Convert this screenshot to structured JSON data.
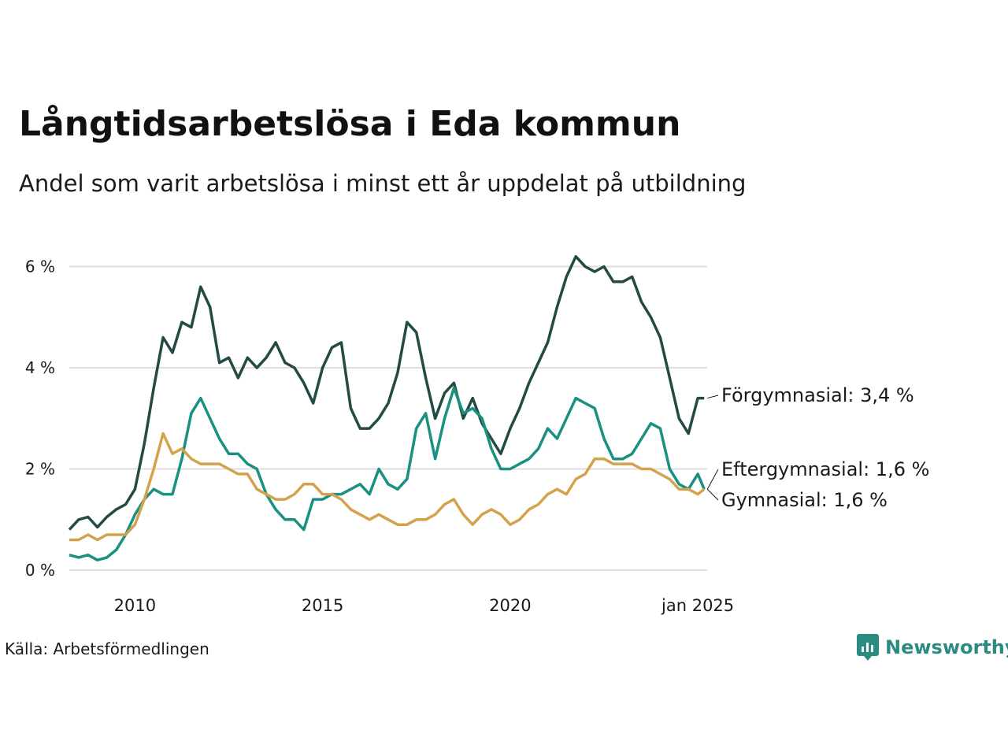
{
  "title": "Långtidsarbetslösa i Eda kommun",
  "subtitle": "Andel som varit arbetslösa i minst ett år uppdelat på utbildning",
  "source": "Källa: Arbetsförmedlingen",
  "brand": {
    "name": "Newsworthy",
    "icon": "newsworthy-logo-icon",
    "color": "#2a8c80"
  },
  "chart_data": {
    "type": "line",
    "title": "Långtidsarbetslösa i Eda kommun",
    "subtitle": "Andel som varit arbetslösa i minst ett år uppdelat på utbildning",
    "xlabel": "",
    "ylabel": "",
    "xlim": [
      2008.0,
      2025.0
    ],
    "ylim": [
      0,
      6.6
    ],
    "grid": true,
    "yticks": [
      {
        "value": 0,
        "label": "0 %"
      },
      {
        "value": 2,
        "label": "2 %"
      },
      {
        "value": 4,
        "label": "4 %"
      },
      {
        "value": 6,
        "label": "6 %"
      }
    ],
    "xticks": [
      {
        "value": 2009.75,
        "label": "2010"
      },
      {
        "value": 2014.75,
        "label": "2015"
      },
      {
        "value": 2019.75,
        "label": "2020"
      },
      {
        "value": 2024.75,
        "label": "jan 2025"
      }
    ],
    "series": [
      {
        "name": "Förgymnasial",
        "label": "Förgymnasial: 3,4 %",
        "color": "#234a44",
        "points": [
          [
            2008.0,
            0.8
          ],
          [
            2008.25,
            1.0
          ],
          [
            2008.5,
            1.05
          ],
          [
            2008.75,
            0.85
          ],
          [
            2009.0,
            1.05
          ],
          [
            2009.25,
            1.2
          ],
          [
            2009.5,
            1.3
          ],
          [
            2009.75,
            1.6
          ],
          [
            2010.0,
            2.5
          ],
          [
            2010.25,
            3.6
          ],
          [
            2010.5,
            4.6
          ],
          [
            2010.75,
            4.3
          ],
          [
            2011.0,
            4.9
          ],
          [
            2011.25,
            4.8
          ],
          [
            2011.5,
            5.6
          ],
          [
            2011.75,
            5.2
          ],
          [
            2012.0,
            4.1
          ],
          [
            2012.25,
            4.2
          ],
          [
            2012.5,
            3.8
          ],
          [
            2012.75,
            4.2
          ],
          [
            2013.0,
            4.0
          ],
          [
            2013.25,
            4.2
          ],
          [
            2013.5,
            4.5
          ],
          [
            2013.75,
            4.1
          ],
          [
            2014.0,
            4.0
          ],
          [
            2014.25,
            3.7
          ],
          [
            2014.5,
            3.3
          ],
          [
            2014.75,
            4.0
          ],
          [
            2015.0,
            4.4
          ],
          [
            2015.25,
            4.5
          ],
          [
            2015.5,
            3.2
          ],
          [
            2015.75,
            2.8
          ],
          [
            2016.0,
            2.8
          ],
          [
            2016.25,
            3.0
          ],
          [
            2016.5,
            3.3
          ],
          [
            2016.75,
            3.9
          ],
          [
            2017.0,
            4.9
          ],
          [
            2017.25,
            4.7
          ],
          [
            2017.5,
            3.8
          ],
          [
            2017.75,
            3.0
          ],
          [
            2018.0,
            3.5
          ],
          [
            2018.25,
            3.7
          ],
          [
            2018.5,
            3.0
          ],
          [
            2018.75,
            3.4
          ],
          [
            2019.0,
            2.9
          ],
          [
            2019.25,
            2.6
          ],
          [
            2019.5,
            2.3
          ],
          [
            2019.75,
            2.8
          ],
          [
            2020.0,
            3.2
          ],
          [
            2020.25,
            3.7
          ],
          [
            2020.5,
            4.1
          ],
          [
            2020.75,
            4.5
          ],
          [
            2021.0,
            5.2
          ],
          [
            2021.25,
            5.8
          ],
          [
            2021.5,
            6.2
          ],
          [
            2021.75,
            6.0
          ],
          [
            2022.0,
            5.9
          ],
          [
            2022.25,
            6.0
          ],
          [
            2022.5,
            5.7
          ],
          [
            2022.75,
            5.7
          ],
          [
            2023.0,
            5.8
          ],
          [
            2023.25,
            5.3
          ],
          [
            2023.5,
            5.0
          ],
          [
            2023.75,
            4.6
          ],
          [
            2024.0,
            3.8
          ],
          [
            2024.25,
            3.0
          ],
          [
            2024.5,
            2.7
          ],
          [
            2024.75,
            3.4
          ],
          [
            2024.92,
            3.4
          ]
        ]
      },
      {
        "name": "Eftergymnasial",
        "label": "Eftergymnasial: 1,6 %",
        "color": "#1a9081",
        "points": [
          [
            2008.0,
            0.3
          ],
          [
            2008.25,
            0.25
          ],
          [
            2008.5,
            0.3
          ],
          [
            2008.75,
            0.2
          ],
          [
            2009.0,
            0.25
          ],
          [
            2009.25,
            0.4
          ],
          [
            2009.5,
            0.7
          ],
          [
            2009.75,
            1.1
          ],
          [
            2010.0,
            1.4
          ],
          [
            2010.25,
            1.6
          ],
          [
            2010.5,
            1.5
          ],
          [
            2010.75,
            1.5
          ],
          [
            2011.0,
            2.2
          ],
          [
            2011.25,
            3.1
          ],
          [
            2011.5,
            3.4
          ],
          [
            2011.75,
            3.0
          ],
          [
            2012.0,
            2.6
          ],
          [
            2012.25,
            2.3
          ],
          [
            2012.5,
            2.3
          ],
          [
            2012.75,
            2.1
          ],
          [
            2013.0,
            2.0
          ],
          [
            2013.25,
            1.5
          ],
          [
            2013.5,
            1.2
          ],
          [
            2013.75,
            1.0
          ],
          [
            2014.0,
            1.0
          ],
          [
            2014.25,
            0.8
          ],
          [
            2014.5,
            1.4
          ],
          [
            2014.75,
            1.4
          ],
          [
            2015.0,
            1.5
          ],
          [
            2015.25,
            1.5
          ],
          [
            2015.5,
            1.6
          ],
          [
            2015.75,
            1.7
          ],
          [
            2016.0,
            1.5
          ],
          [
            2016.25,
            2.0
          ],
          [
            2016.5,
            1.7
          ],
          [
            2016.75,
            1.6
          ],
          [
            2017.0,
            1.8
          ],
          [
            2017.25,
            2.8
          ],
          [
            2017.5,
            3.1
          ],
          [
            2017.75,
            2.2
          ],
          [
            2018.0,
            3.0
          ],
          [
            2018.25,
            3.6
          ],
          [
            2018.5,
            3.1
          ],
          [
            2018.75,
            3.2
          ],
          [
            2019.0,
            3.0
          ],
          [
            2019.25,
            2.4
          ],
          [
            2019.5,
            2.0
          ],
          [
            2019.75,
            2.0
          ],
          [
            2020.0,
            2.1
          ],
          [
            2020.25,
            2.2
          ],
          [
            2020.5,
            2.4
          ],
          [
            2020.75,
            2.8
          ],
          [
            2021.0,
            2.6
          ],
          [
            2021.25,
            3.0
          ],
          [
            2021.5,
            3.4
          ],
          [
            2021.75,
            3.3
          ],
          [
            2022.0,
            3.2
          ],
          [
            2022.25,
            2.6
          ],
          [
            2022.5,
            2.2
          ],
          [
            2022.75,
            2.2
          ],
          [
            2023.0,
            2.3
          ],
          [
            2023.25,
            2.6
          ],
          [
            2023.5,
            2.9
          ],
          [
            2023.75,
            2.8
          ],
          [
            2024.0,
            2.0
          ],
          [
            2024.25,
            1.7
          ],
          [
            2024.5,
            1.6
          ],
          [
            2024.75,
            1.9
          ],
          [
            2024.92,
            1.6
          ]
        ]
      },
      {
        "name": "Gymnasial",
        "label": "Gymnasial: 1,6 %",
        "color": "#d4a24c",
        "points": [
          [
            2008.0,
            0.6
          ],
          [
            2008.25,
            0.6
          ],
          [
            2008.5,
            0.7
          ],
          [
            2008.75,
            0.6
          ],
          [
            2009.0,
            0.7
          ],
          [
            2009.25,
            0.7
          ],
          [
            2009.5,
            0.7
          ],
          [
            2009.75,
            0.9
          ],
          [
            2010.0,
            1.4
          ],
          [
            2010.25,
            2.0
          ],
          [
            2010.5,
            2.7
          ],
          [
            2010.75,
            2.3
          ],
          [
            2011.0,
            2.4
          ],
          [
            2011.25,
            2.2
          ],
          [
            2011.5,
            2.1
          ],
          [
            2011.75,
            2.1
          ],
          [
            2012.0,
            2.1
          ],
          [
            2012.25,
            2.0
          ],
          [
            2012.5,
            1.9
          ],
          [
            2012.75,
            1.9
          ],
          [
            2013.0,
            1.6
          ],
          [
            2013.25,
            1.5
          ],
          [
            2013.5,
            1.4
          ],
          [
            2013.75,
            1.4
          ],
          [
            2014.0,
            1.5
          ],
          [
            2014.25,
            1.7
          ],
          [
            2014.5,
            1.7
          ],
          [
            2014.75,
            1.5
          ],
          [
            2015.0,
            1.5
          ],
          [
            2015.25,
            1.4
          ],
          [
            2015.5,
            1.2
          ],
          [
            2015.75,
            1.1
          ],
          [
            2016.0,
            1.0
          ],
          [
            2016.25,
            1.1
          ],
          [
            2016.5,
            1.0
          ],
          [
            2016.75,
            0.9
          ],
          [
            2017.0,
            0.9
          ],
          [
            2017.25,
            1.0
          ],
          [
            2017.5,
            1.0
          ],
          [
            2017.75,
            1.1
          ],
          [
            2018.0,
            1.3
          ],
          [
            2018.25,
            1.4
          ],
          [
            2018.5,
            1.1
          ],
          [
            2018.75,
            0.9
          ],
          [
            2019.0,
            1.1
          ],
          [
            2019.25,
            1.2
          ],
          [
            2019.5,
            1.1
          ],
          [
            2019.75,
            0.9
          ],
          [
            2020.0,
            1.0
          ],
          [
            2020.25,
            1.2
          ],
          [
            2020.5,
            1.3
          ],
          [
            2020.75,
            1.5
          ],
          [
            2021.0,
            1.6
          ],
          [
            2021.25,
            1.5
          ],
          [
            2021.5,
            1.8
          ],
          [
            2021.75,
            1.9
          ],
          [
            2022.0,
            2.2
          ],
          [
            2022.25,
            2.2
          ],
          [
            2022.5,
            2.1
          ],
          [
            2022.75,
            2.1
          ],
          [
            2023.0,
            2.1
          ],
          [
            2023.25,
            2.0
          ],
          [
            2023.5,
            2.0
          ],
          [
            2023.75,
            1.9
          ],
          [
            2024.0,
            1.8
          ],
          [
            2024.25,
            1.6
          ],
          [
            2024.5,
            1.6
          ],
          [
            2024.75,
            1.5
          ],
          [
            2024.92,
            1.6
          ]
        ]
      }
    ]
  }
}
